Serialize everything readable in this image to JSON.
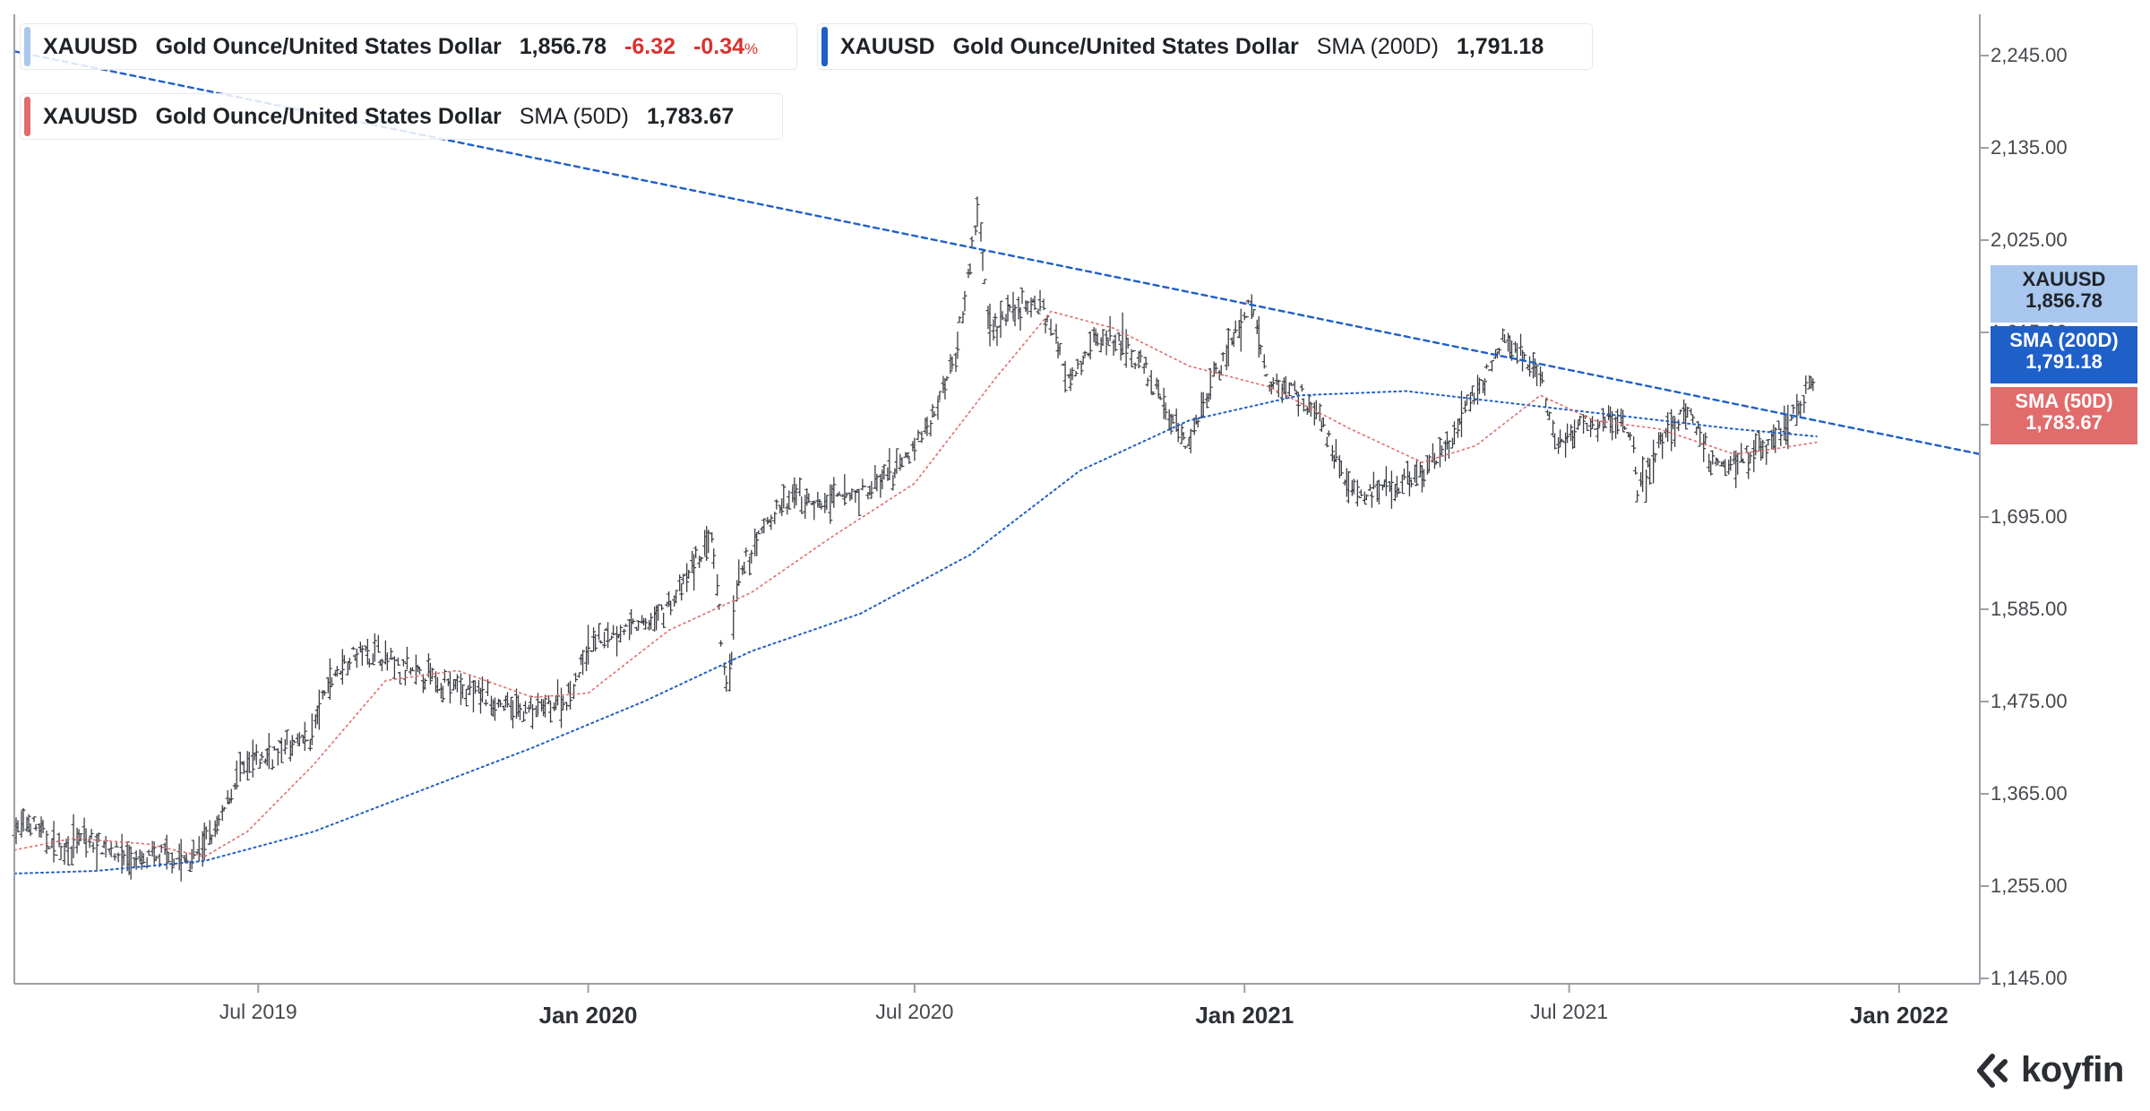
{
  "legend": {
    "price": {
      "symbol": "XAUUSD",
      "name": "Gold Ounce/United States Dollar",
      "last": "1,856.78",
      "change": "-6.32",
      "change_pct": "-0.34",
      "pct_sign": "%",
      "color": "#a9c6ee"
    },
    "sma200": {
      "symbol": "XAUUSD",
      "name": "Gold Ounce/United States Dollar",
      "indicator": "SMA (200D)",
      "value": "1,791.18",
      "color": "#1f5fc8"
    },
    "sma50": {
      "symbol": "XAUUSD",
      "name": "Gold Ounce/United States Dollar",
      "indicator": "SMA (50D)",
      "value": "1,783.67",
      "color": "#e06c6c"
    }
  },
  "tags": {
    "price": {
      "label": "XAUUSD",
      "value": "1,856.78",
      "color": "#a9c6ee",
      "text_color": "#1f2328"
    },
    "sma200": {
      "label": "SMA (200D)",
      "value": "1,791.18",
      "color": "#1f5fc8"
    },
    "sma50": {
      "label": "SMA (50D)",
      "value": "1,783.67",
      "color": "#e06c6c"
    }
  },
  "brand": {
    "name": "koyfin",
    "icon": "koyfin-chevron-icon"
  },
  "chart_data": {
    "type": "line",
    "title": "",
    "ylim": [
      1145,
      2245
    ],
    "y_ticks": [
      "2,245.00",
      "2,135.00",
      "2,025.00",
      "1,915.00",
      "1,805.00",
      "1,695.00",
      "1,585.00",
      "1,475.00",
      "1,365.00",
      "1,255.00",
      "1,145.00"
    ],
    "x_ticks": [
      {
        "label": "Jul 2019",
        "date": "2019-07-01",
        "major": false
      },
      {
        "label": "Jan 2020",
        "date": "2020-01-01",
        "major": true
      },
      {
        "label": "Jul 2020",
        "date": "2020-07-01",
        "major": false
      },
      {
        "label": "Jan 2021",
        "date": "2021-01-01",
        "major": true
      },
      {
        "label": "Jul 2021",
        "date": "2021-07-01",
        "major": false
      },
      {
        "label": "Jan 2022",
        "date": "2022-01-01",
        "major": true
      }
    ],
    "x_range": [
      "2019-02-15",
      "2022-02-15"
    ],
    "grid": false,
    "series": [
      {
        "name": "XAUUSD",
        "style": "ohlc-bars",
        "color": "#3a3d42",
        "points": [
          [
            "2019-02-15",
            1320
          ],
          [
            "2019-02-25",
            1330
          ],
          [
            "2019-03-10",
            1300
          ],
          [
            "2019-03-25",
            1310
          ],
          [
            "2019-04-10",
            1300
          ],
          [
            "2019-04-25",
            1282
          ],
          [
            "2019-05-10",
            1292
          ],
          [
            "2019-05-25",
            1284
          ],
          [
            "2019-06-10",
            1330
          ],
          [
            "2019-06-20",
            1390
          ],
          [
            "2019-07-01",
            1405
          ],
          [
            "2019-07-15",
            1420
          ],
          [
            "2019-07-30",
            1430
          ],
          [
            "2019-08-10",
            1500
          ],
          [
            "2019-08-25",
            1535
          ],
          [
            "2019-09-05",
            1535
          ],
          [
            "2019-09-20",
            1510
          ],
          [
            "2019-10-05",
            1505
          ],
          [
            "2019-10-20",
            1492
          ],
          [
            "2019-11-05",
            1480
          ],
          [
            "2019-11-20",
            1467
          ],
          [
            "2019-12-05",
            1465
          ],
          [
            "2019-12-20",
            1478
          ],
          [
            "2020-01-05",
            1550
          ],
          [
            "2020-01-20",
            1560
          ],
          [
            "2020-02-05",
            1570
          ],
          [
            "2020-02-20",
            1600
          ],
          [
            "2020-03-01",
            1640
          ],
          [
            "2020-03-10",
            1670
          ],
          [
            "2020-03-19",
            1480
          ],
          [
            "2020-03-25",
            1620
          ],
          [
            "2020-04-10",
            1690
          ],
          [
            "2020-04-25",
            1720
          ],
          [
            "2020-05-10",
            1710
          ],
          [
            "2020-05-25",
            1720
          ],
          [
            "2020-06-10",
            1730
          ],
          [
            "2020-06-25",
            1760
          ],
          [
            "2020-07-10",
            1805
          ],
          [
            "2020-07-25",
            1900
          ],
          [
            "2020-08-06",
            2060
          ],
          [
            "2020-08-12",
            1920
          ],
          [
            "2020-08-25",
            1940
          ],
          [
            "2020-09-10",
            1950
          ],
          [
            "2020-09-25",
            1865
          ],
          [
            "2020-10-10",
            1905
          ],
          [
            "2020-10-25",
            1905
          ],
          [
            "2020-11-09",
            1860
          ],
          [
            "2020-11-30",
            1780
          ],
          [
            "2020-12-15",
            1860
          ],
          [
            "2021-01-05",
            1950
          ],
          [
            "2021-01-15",
            1850
          ],
          [
            "2021-01-30",
            1850
          ],
          [
            "2021-02-15",
            1800
          ],
          [
            "2021-03-01",
            1730
          ],
          [
            "2021-03-10",
            1720
          ],
          [
            "2021-03-25",
            1730
          ],
          [
            "2021-04-10",
            1745
          ],
          [
            "2021-04-25",
            1780
          ],
          [
            "2021-05-10",
            1840
          ],
          [
            "2021-05-25",
            1900
          ],
          [
            "2021-06-05",
            1890
          ],
          [
            "2021-06-15",
            1860
          ],
          [
            "2021-06-25",
            1780
          ],
          [
            "2021-07-10",
            1805
          ],
          [
            "2021-07-25",
            1810
          ],
          [
            "2021-08-05",
            1800
          ],
          [
            "2021-08-09",
            1725
          ],
          [
            "2021-08-20",
            1780
          ],
          [
            "2021-09-05",
            1825
          ],
          [
            "2021-09-20",
            1760
          ],
          [
            "2021-10-05",
            1765
          ],
          [
            "2021-10-20",
            1780
          ],
          [
            "2021-11-05",
            1820
          ],
          [
            "2021-11-16",
            1862
          ]
        ]
      },
      {
        "name": "SMA (200D)",
        "style": "dotted",
        "color": "#1f5fc8",
        "points": [
          [
            "2019-02-15",
            1270
          ],
          [
            "2019-04-01",
            1273
          ],
          [
            "2019-06-01",
            1285
          ],
          [
            "2019-08-01",
            1320
          ],
          [
            "2019-10-01",
            1370
          ],
          [
            "2019-12-01",
            1420
          ],
          [
            "2020-02-01",
            1475
          ],
          [
            "2020-04-01",
            1535
          ],
          [
            "2020-06-01",
            1580
          ],
          [
            "2020-08-01",
            1650
          ],
          [
            "2020-10-01",
            1750
          ],
          [
            "2020-12-01",
            1810
          ],
          [
            "2021-02-01",
            1840
          ],
          [
            "2021-04-01",
            1845
          ],
          [
            "2021-06-01",
            1830
          ],
          [
            "2021-08-01",
            1815
          ],
          [
            "2021-10-01",
            1800
          ],
          [
            "2021-11-16",
            1791
          ]
        ]
      },
      {
        "name": "SMA (50D)",
        "style": "dotted",
        "color": "#e06c6c",
        "points": [
          [
            "2019-02-15",
            1298
          ],
          [
            "2019-03-20",
            1312
          ],
          [
            "2019-05-01",
            1305
          ],
          [
            "2019-06-01",
            1290
          ],
          [
            "2019-06-25",
            1320
          ],
          [
            "2019-08-01",
            1400
          ],
          [
            "2019-09-10",
            1500
          ],
          [
            "2019-10-20",
            1512
          ],
          [
            "2019-12-01",
            1480
          ],
          [
            "2020-01-01",
            1485
          ],
          [
            "2020-02-15",
            1560
          ],
          [
            "2020-04-01",
            1605
          ],
          [
            "2020-05-15",
            1670
          ],
          [
            "2020-07-01",
            1735
          ],
          [
            "2020-08-15",
            1860
          ],
          [
            "2020-09-15",
            1940
          ],
          [
            "2020-10-20",
            1920
          ],
          [
            "2020-12-01",
            1875
          ],
          [
            "2021-01-15",
            1850
          ],
          [
            "2021-03-01",
            1800
          ],
          [
            "2021-04-10",
            1760
          ],
          [
            "2021-05-10",
            1780
          ],
          [
            "2021-06-15",
            1840
          ],
          [
            "2021-07-15",
            1810
          ],
          [
            "2021-08-20",
            1800
          ],
          [
            "2021-10-01",
            1770
          ],
          [
            "2021-10-20",
            1775
          ],
          [
            "2021-11-16",
            1784
          ]
        ]
      },
      {
        "name": "Trendline",
        "style": "dashed",
        "color": "#1f5fc8",
        "points": [
          [
            "2019-02-15",
            2250
          ],
          [
            "2022-02-15",
            1770
          ]
        ]
      }
    ]
  }
}
